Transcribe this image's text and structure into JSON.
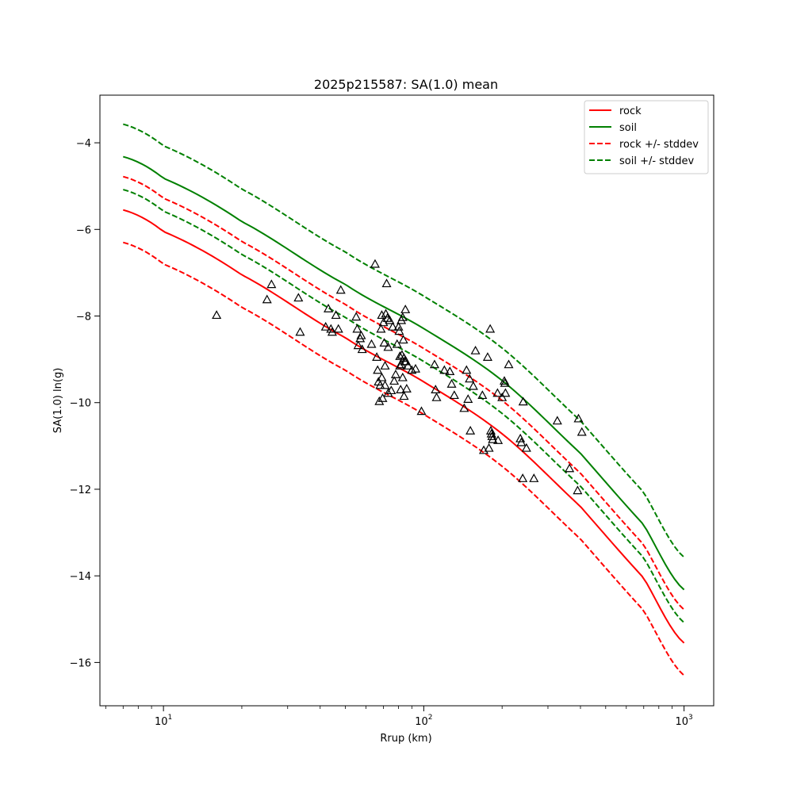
{
  "chart_data": {
    "type": "scatter",
    "title": "2025p215587: SA(1.0) mean",
    "xlabel": "Rrup (km)",
    "ylabel": "SA(1.0) ln(g)",
    "xscale": "log",
    "xlim": [
      5.7,
      1300
    ],
    "ylim": [
      -17.0,
      -2.9
    ],
    "grid": false,
    "legend_position": "top-right",
    "x_ticks": [
      {
        "value": 10,
        "base": "10",
        "exp": "1"
      },
      {
        "value": 100,
        "base": "10",
        "exp": "2"
      },
      {
        "value": 1000,
        "base": "10",
        "exp": "3"
      }
    ],
    "y_ticks": [
      {
        "value": -4,
        "label": "−4"
      },
      {
        "value": -6,
        "label": "−6"
      },
      {
        "value": -8,
        "label": "−8"
      },
      {
        "value": -10,
        "label": "−10"
      },
      {
        "value": -12,
        "label": "−12"
      },
      {
        "value": -14,
        "label": "−14"
      },
      {
        "value": -16,
        "label": "−16"
      }
    ],
    "series": [
      {
        "name": "rock",
        "color": "#ff0000",
        "dashed": false,
        "x": [
          7,
          10,
          20,
          50,
          100,
          200,
          400,
          700,
          1000
        ],
        "y": [
          -5.55,
          -6.05,
          -7.05,
          -8.5,
          -9.52,
          -10.72,
          -12.4,
          -14.05,
          -15.55
        ]
      },
      {
        "name": "soil",
        "color": "#008000",
        "dashed": false,
        "x": [
          7,
          10,
          20,
          50,
          100,
          200,
          400,
          700,
          1000
        ],
        "y": [
          -4.32,
          -4.82,
          -5.82,
          -7.27,
          -8.29,
          -9.49,
          -11.17,
          -12.82,
          -14.32
        ]
      },
      {
        "name": "rock +/- stddev",
        "color": "#ff0000",
        "dashed": true,
        "x": [
          7,
          10,
          20,
          50,
          100,
          200,
          400,
          700,
          1000
        ],
        "y": [
          -4.78,
          -5.28,
          -6.28,
          -7.73,
          -8.75,
          -9.95,
          -11.63,
          -13.28,
          -14.78
        ]
      },
      {
        "name": "",
        "color": "#ff0000",
        "dashed": true,
        "x": [
          7,
          10,
          20,
          50,
          100,
          200,
          400,
          700,
          1000
        ],
        "y": [
          -6.3,
          -6.8,
          -7.8,
          -9.25,
          -10.27,
          -11.47,
          -13.15,
          -14.8,
          -16.3
        ]
      },
      {
        "name": "soil +/- stddev",
        "color": "#008000",
        "dashed": true,
        "x": [
          7,
          10,
          20,
          50,
          100,
          200,
          400,
          700,
          1000
        ],
        "y": [
          -3.57,
          -4.07,
          -5.07,
          -6.52,
          -7.54,
          -8.74,
          -10.42,
          -12.07,
          -13.57
        ]
      },
      {
        "name": "",
        "color": "#008000",
        "dashed": true,
        "x": [
          7,
          10,
          20,
          50,
          100,
          200,
          400,
          700,
          1000
        ],
        "y": [
          -5.08,
          -5.58,
          -6.58,
          -8.03,
          -9.05,
          -10.25,
          -11.93,
          -13.58,
          -15.08
        ]
      }
    ],
    "points": {
      "marker": "triangle",
      "color": "#000000",
      "x": [
        16,
        25,
        26,
        33,
        33.5,
        42,
        43,
        44,
        44.5,
        46,
        47,
        48,
        55,
        55.5,
        56,
        57,
        57.5,
        58,
        63,
        65,
        66,
        66.5,
        67,
        67.5,
        68,
        68.5,
        69,
        69,
        69.5,
        70,
        70.5,
        71,
        71,
        71.5,
        72,
        72.5,
        73,
        73,
        74,
        75,
        76,
        77,
        78,
        79,
        80,
        80.5,
        81,
        81,
        81.5,
        82,
        82,
        82.5,
        83,
        83,
        83.5,
        84,
        84,
        84.5,
        85,
        85.5,
        86,
        87,
        90,
        93,
        98,
        110,
        111,
        112,
        120,
        126,
        128,
        131,
        143,
        146,
        148,
        150,
        151,
        155,
        158,
        168,
        170,
        176,
        178,
        180,
        181,
        182,
        183,
        184,
        192,
        193,
        200,
        204,
        205,
        206,
        212,
        235,
        237,
        240,
        241,
        248,
        265,
        326,
        363,
        390,
        393,
        405
      ],
      "y": [
        -7.98,
        -7.62,
        -7.27,
        -7.58,
        -8.37,
        -8.25,
        -7.83,
        -8.3,
        -8.37,
        -7.98,
        -8.3,
        -7.4,
        -8.02,
        -8.3,
        -8.68,
        -8.52,
        -8.45,
        -8.77,
        -8.65,
        -6.8,
        -8.95,
        -9.25,
        -9.52,
        -9.97,
        -9.6,
        -8.3,
        -7.98,
        -9.42,
        -9.9,
        -8.15,
        -8.62,
        -9.15,
        -9.6,
        -7.95,
        -7.25,
        -8.05,
        -8.72,
        -9.78,
        -8.1,
        -9.72,
        -8.25,
        -9.5,
        -9.35,
        -8.65,
        -8.25,
        -8.35,
        -8.93,
        -9.15,
        -9.7,
        -8.1,
        -9.12,
        -8.9,
        -8.03,
        -9.42,
        -8.55,
        -8.97,
        -9.85,
        -9.05,
        -7.85,
        -9.05,
        -9.68,
        -9.15,
        -9.25,
        -9.22,
        -10.2,
        -9.12,
        -9.7,
        -9.88,
        -9.25,
        -9.28,
        -9.57,
        -9.83,
        -10.13,
        -9.25,
        -9.92,
        -9.45,
        -10.65,
        -9.62,
        -8.8,
        -9.83,
        -11.1,
        -8.95,
        -11.05,
        -8.3,
        -10.65,
        -10.72,
        -10.78,
        -10.85,
        -9.78,
        -10.87,
        -9.88,
        -9.5,
        -9.55,
        -9.78,
        -9.12,
        -10.83,
        -10.92,
        -11.75,
        -9.98,
        -11.05,
        -11.75,
        -10.42,
        -11.52,
        -12.03,
        -10.37,
        -10.68
      ]
    }
  }
}
